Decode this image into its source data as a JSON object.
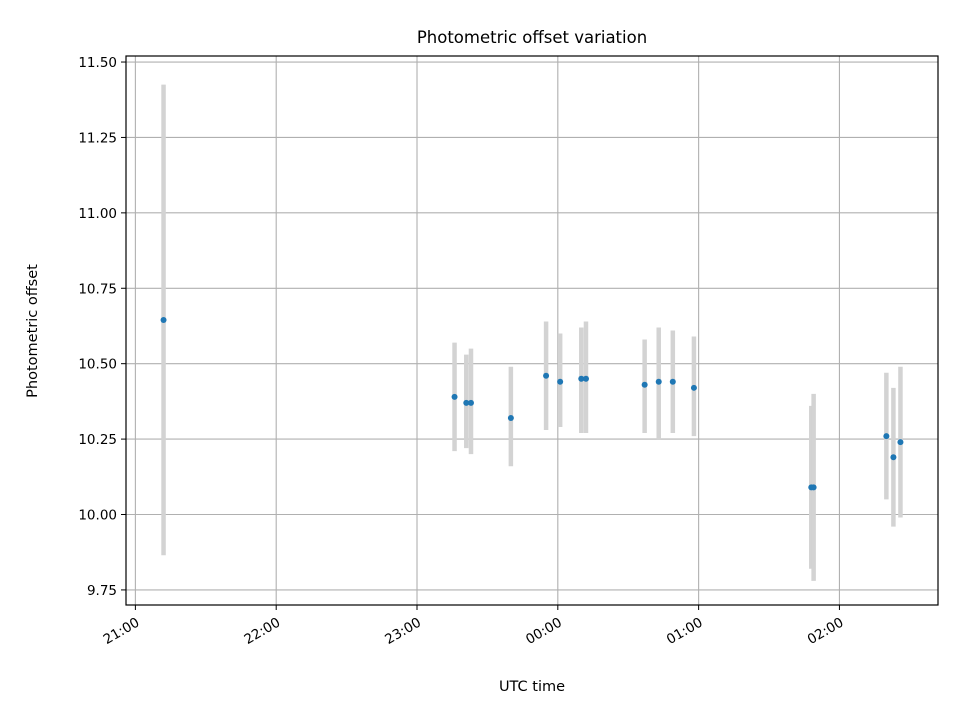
{
  "chart_data": {
    "type": "scatter",
    "title": "Photometric offset variation",
    "xlabel": "UTC time",
    "ylabel": "Photometric offset",
    "grid": true,
    "x_axis_kind": "time",
    "x_ticks": [
      "21:00",
      "22:00",
      "23:00",
      "00:00",
      "01:00",
      "02:00"
    ],
    "y_ticks": [
      "9.75",
      "10.00",
      "10.25",
      "10.50",
      "10.75",
      "11.00",
      "11.25",
      "11.50"
    ],
    "xlim": [
      "20:56",
      "02:42"
    ],
    "ylim": [
      9.7,
      11.52
    ],
    "colors": {
      "point": "#1f77b4",
      "errorbar": "#d3d3d3",
      "grid": "#b0b0b0"
    },
    "points": [
      {
        "t": "21:12",
        "y": 10.645,
        "lo": 9.865,
        "hi": 11.425
      },
      {
        "t": "23:16",
        "y": 10.39,
        "lo": 10.21,
        "hi": 10.57
      },
      {
        "t": "23:21",
        "y": 10.37,
        "lo": 10.22,
        "hi": 10.53
      },
      {
        "t": "23:23",
        "y": 10.37,
        "lo": 10.2,
        "hi": 10.55
      },
      {
        "t": "23:40",
        "y": 10.32,
        "lo": 10.16,
        "hi": 10.49
      },
      {
        "t": "23:55",
        "y": 10.46,
        "lo": 10.28,
        "hi": 10.64
      },
      {
        "t": "00:01",
        "y": 10.44,
        "lo": 10.29,
        "hi": 10.6
      },
      {
        "t": "00:10",
        "y": 10.45,
        "lo": 10.27,
        "hi": 10.62
      },
      {
        "t": "00:12",
        "y": 10.45,
        "lo": 10.27,
        "hi": 10.64
      },
      {
        "t": "00:37",
        "y": 10.43,
        "lo": 10.27,
        "hi": 10.58
      },
      {
        "t": "00:43",
        "y": 10.44,
        "lo": 10.25,
        "hi": 10.62
      },
      {
        "t": "00:49",
        "y": 10.44,
        "lo": 10.27,
        "hi": 10.61
      },
      {
        "t": "00:58",
        "y": 10.42,
        "lo": 10.26,
        "hi": 10.59
      },
      {
        "t": "01:48",
        "y": 10.09,
        "lo": 9.82,
        "hi": 10.36
      },
      {
        "t": "01:49",
        "y": 10.09,
        "lo": 9.78,
        "hi": 10.4
      },
      {
        "t": "02:20",
        "y": 10.26,
        "lo": 10.05,
        "hi": 10.47
      },
      {
        "t": "02:23",
        "y": 10.19,
        "lo": 9.96,
        "hi": 10.42
      },
      {
        "t": "02:26",
        "y": 10.24,
        "lo": 9.99,
        "hi": 10.49
      }
    ]
  }
}
